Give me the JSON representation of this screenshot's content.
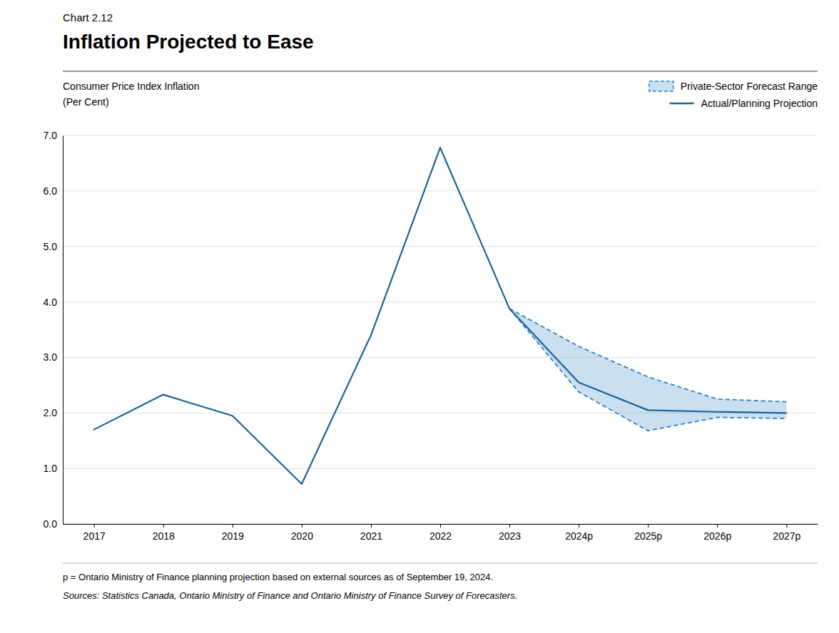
{
  "chart_data": {
    "type": "line",
    "subtitle": "Chart 2.12",
    "title": "Inflation Projected to Ease",
    "ylabel": [
      "Consumer Price Index Inflation",
      "(Per Cent)"
    ],
    "annotations": [
      "p = Ontario Ministry of Finance planning projection based on external sources as of September 19, 2024.",
      "Sources: Statistics Canada, Ontario Ministry of Finance and Ontario Ministry of Finance Survey of Forecasters."
    ],
    "x": [
      2017,
      2018,
      2019,
      2020,
      2021,
      2022,
      2023,
      2024,
      2025,
      2026,
      2027
    ],
    "xlim": [
      2016.55,
      2027.45
    ],
    "xticks": [
      2017,
      2018,
      2019,
      2020,
      2021,
      2022,
      2023,
      {
        "value": 2024,
        "label": "2024p"
      },
      {
        "value": 2025,
        "label": "2025p"
      },
      {
        "value": 2026,
        "label": "2026p"
      },
      {
        "value": 2027,
        "label": "2027p"
      }
    ],
    "ylim": [
      0.0,
      7.0
    ],
    "yticks": [
      {
        "value": 0.0,
        "label": "0.0"
      },
      {
        "value": 1.0,
        "label": "1.0"
      },
      {
        "value": 2.0,
        "label": "2.0"
      },
      {
        "value": 3.0,
        "label": "3.0"
      },
      {
        "value": 4.0,
        "label": "4.0"
      },
      {
        "value": 5.0,
        "label": "5.0"
      },
      {
        "value": 6.0,
        "label": "6.0"
      },
      {
        "value": 7.0,
        "label": "7.0"
      }
    ],
    "grid": true,
    "legend": "upper right",
    "series": [
      {
        "name": "Private-Sector Forecast Range",
        "type": "band",
        "color": "#2a82c8",
        "line_style": "dashed",
        "values": [
          null,
          null,
          null,
          null,
          null,
          null,
          3.88,
          3.2,
          2.65,
          2.25,
          2.2
        ],
        "lower": [
          null,
          null,
          null,
          null,
          null,
          null,
          3.88,
          2.38,
          1.68,
          1.92,
          1.9
        ]
      },
      {
        "name": "Actual/Planning Projection",
        "type": "line",
        "color": "#1a6496",
        "line_style": "solid",
        "values": [
          1.7,
          2.33,
          1.95,
          0.72,
          3.4,
          6.78,
          3.88,
          2.55,
          2.05,
          2.02,
          2.0
        ]
      }
    ]
  }
}
